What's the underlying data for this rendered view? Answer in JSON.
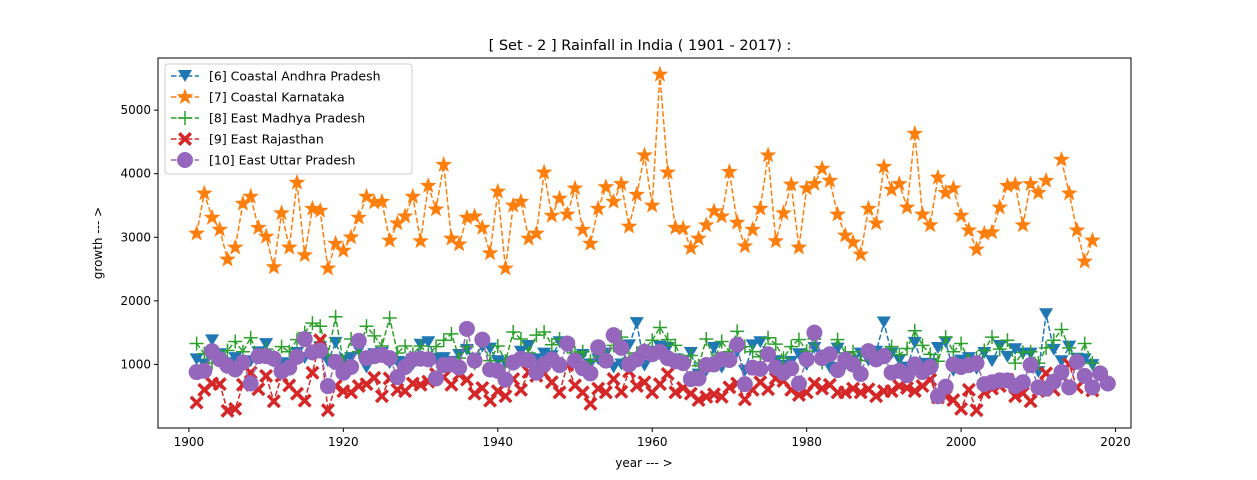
{
  "chart_data": {
    "type": "line",
    "title": "[ Set - 2 ] Rainfall in India ( 1901 - 2017) :",
    "xlabel": "year --- >",
    "ylabel": "growth --- >",
    "xlim": [
      1896,
      2022
    ],
    "ylim": [
      0,
      5820
    ],
    "xticks": [
      1900,
      1920,
      1940,
      1960,
      1980,
      2000,
      2020
    ],
    "yticks": [
      1000,
      2000,
      3000,
      4000,
      5000
    ],
    "grid": false,
    "legend_position": "top-left",
    "x_start": 1901,
    "series": [
      {
        "name": "[6] Coastal Andhra Pradesh",
        "color": "#1f77b4",
        "marker": "triangle-down",
        "linestyle": "dashed",
        "values": [
          1080,
          1000,
          1380,
          1160,
          1020,
          1100,
          980,
          1050,
          1190,
          1320,
          1040,
          1020,
          1000,
          1180,
          1100,
          1150,
          1270,
          1050,
          1340,
          1060,
          1100,
          1220,
          950,
          1160,
          1180,
          1020,
          1040,
          1030,
          1000,
          1310,
          1350,
          1090,
          1100,
          1040,
          1150,
          1230,
          1090,
          1280,
          1250,
          1050,
          1020,
          1040,
          1200,
          1290,
          1080,
          1170,
          1130,
          1350,
          1300,
          1020,
          1150,
          1000,
          1080,
          1170,
          950,
          1000,
          1300,
          1650,
          980,
          1200,
          1280,
          1260,
          1080,
          1050,
          1180,
          840,
          900,
          1260,
          950,
          1030,
          1200,
          900,
          1300,
          1350,
          1150,
          1050,
          980,
          1040,
          1160,
          990,
          1260,
          1140,
          950,
          1250,
          1000,
          1060,
          1170,
          1060,
          1200,
          1660,
          1170,
          1070,
          950,
          1340,
          1010,
          1010,
          1260,
          1350,
          900,
          1060,
          1100,
          930,
          1180,
          1050,
          1290,
          1120,
          1240,
          1170,
          1170,
          880,
          1790,
          1230,
          1050,
          1280,
          1090,
          1080,
          990
        ]
      },
      {
        "name": "[7] Coastal Karnataka",
        "color": "#ff7f0e",
        "marker": "star",
        "linestyle": "dashed",
        "values": [
          3060,
          3690,
          3310,
          3120,
          2650,
          2840,
          3530,
          3640,
          3150,
          3010,
          2530,
          3380,
          2840,
          3860,
          2720,
          3450,
          3420,
          2510,
          2900,
          2790,
          3000,
          3310,
          3640,
          3550,
          3560,
          2950,
          3220,
          3330,
          3640,
          2940,
          3810,
          3440,
          4140,
          2980,
          2890,
          3310,
          3330,
          3150,
          2750,
          3720,
          2510,
          3500,
          3560,
          2980,
          3060,
          4020,
          3340,
          3610,
          3360,
          3770,
          3120,
          2900,
          3450,
          3790,
          3560,
          3840,
          3170,
          3670,
          4290,
          3500,
          5560,
          4020,
          3150,
          3140,
          2830,
          2980,
          3190,
          3410,
          3330,
          4030,
          3230,
          2860,
          3120,
          3450,
          4290,
          2940,
          3380,
          3830,
          2840,
          3770,
          3840,
          4080,
          3890,
          3360,
          3030,
          2920,
          2730,
          3450,
          3220,
          4110,
          3750,
          3840,
          3470,
          4630,
          3360,
          3190,
          3940,
          3700,
          3770,
          3340,
          3110,
          2810,
          3060,
          3080,
          3470,
          3810,
          3830,
          3190,
          3840,
          3700,
          3890,
          null,
          4220,
          3690,
          3110,
          2620,
          2950
        ]
      },
      {
        "name": "[8] East Madhya Pradesh",
        "color": "#2ca02c",
        "marker": "plus",
        "linestyle": "dashed",
        "values": [
          1330,
          1170,
          1020,
          1080,
          1220,
          1360,
          1200,
          1420,
          1130,
          1240,
          1120,
          1280,
          1200,
          1390,
          1500,
          1650,
          1600,
          1150,
          1750,
          1040,
          1400,
          1200,
          1600,
          1450,
          1290,
          1730,
          1180,
          1290,
          1160,
          1290,
          1150,
          1280,
          1380,
          1480,
          1100,
          1280,
          1020,
          1360,
          1060,
          1290,
          1050,
          1510,
          1400,
          1180,
          1460,
          1510,
          1310,
          1400,
          1280,
          1180,
          1200,
          1050,
          1200,
          1120,
          1300,
          1430,
          1100,
          1180,
          1230,
          1380,
          1580,
          1390,
          1300,
          1060,
          1140,
          980,
          1400,
          1060,
          1360,
          1200,
          1520,
          1280,
          1200,
          1120,
          1420,
          1320,
          1100,
          1280,
          1390,
          1210,
          1400,
          1030,
          1170,
          1390,
          1180,
          1200,
          1060,
          1220,
          1130,
          1150,
          1280,
          1150,
          1250,
          1530,
          1300,
          1160,
          1050,
          1430,
          1200,
          1330,
          1060,
          1100,
          1220,
          1430,
          1240,
          1380,
          1020,
          1190,
          1200,
          1020,
          1260,
          1380,
          1550,
          1260,
          1060,
          1330,
          1020
        ]
      },
      {
        "name": "[9] East Rajasthan",
        "color": "#d62728",
        "marker": "x-filled",
        "linestyle": "dashed",
        "values": [
          400,
          600,
          700,
          690,
          270,
          300,
          680,
          870,
          610,
          820,
          420,
          820,
          670,
          540,
          430,
          870,
          1380,
          280,
          660,
          580,
          560,
          660,
          690,
          790,
          500,
          780,
          600,
          580,
          700,
          680,
          730,
          850,
          800,
          680,
          840,
          760,
          540,
          630,
          430,
          580,
          500,
          770,
          600,
          880,
          820,
          860,
          720,
          560,
          990,
          670,
          560,
          380,
          620,
          560,
          770,
          570,
          890,
          660,
          720,
          560,
          690,
          850,
          560,
          630,
          540,
          440,
          490,
          530,
          490,
          640,
          700,
          450,
          600,
          720,
          610,
          780,
          740,
          600,
          520,
          560,
          700,
          620,
          680,
          560,
          560,
          620,
          560,
          610,
          500,
          580,
          580,
          660,
          630,
          580,
          660,
          760,
          480,
          500,
          440,
          300,
          600,
          280,
          560,
          620,
          660,
          760,
          500,
          550,
          420,
          580,
          860,
          600,
          820,
          1000,
          640,
          760,
          590
        ]
      },
      {
        "name": "[10] East Uttar Pradesh",
        "color": "#9467bd",
        "marker": "circle",
        "linestyle": "dashed",
        "values": [
          880,
          900,
          1210,
          1080,
          980,
          920,
          1030,
          700,
          1130,
          1130,
          1090,
          890,
          950,
          1120,
          1400,
          1190,
          1220,
          660,
          1040,
          870,
          960,
          1370,
          1100,
          1130,
          1150,
          1100,
          800,
          960,
          1080,
          1090,
          1080,
          780,
          990,
          1000,
          950,
          1560,
          1060,
          1390,
          920,
          900,
          760,
          1030,
          1090,
          1060,
          870,
          1000,
          1080,
          990,
          1330,
          1060,
          940,
          860,
          1270,
          1060,
          1460,
          1260,
          1000,
          1080,
          1200,
          1160,
          1200,
          1100,
          1050,
          1020,
          770,
          780,
          990,
          1000,
          1080,
          1070,
          1310,
          690,
          950,
          930,
          1160,
          950,
          870,
          940,
          700,
          1080,
          1500,
          1100,
          1160,
          910,
          1080,
          1000,
          850,
          1210,
          1080,
          1130,
          870,
          900,
          830,
          1000,
          880,
          960,
          500,
          650,
          1000,
          960,
          990,
          1020,
          690,
          720,
          750,
          750,
          660,
          720,
          990,
          640,
          620,
          730,
          880,
          640,
          1040,
          820,
          640,
          860,
          700
        ]
      }
    ]
  }
}
